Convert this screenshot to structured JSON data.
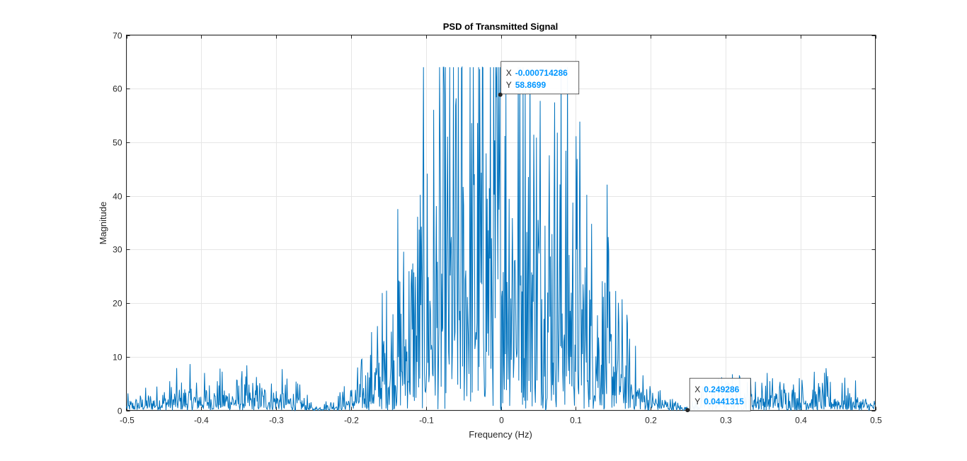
{
  "chart_data": {
    "type": "line",
    "title": "PSD of Transmitted Signal",
    "xlabel": "Frequency (Hz)",
    "ylabel": "Magnitude",
    "xlim": [
      -0.5,
      0.5
    ],
    "ylim": [
      0,
      70
    ],
    "xticks": [
      -0.5,
      -0.4,
      -0.3,
      -0.2,
      -0.1,
      0,
      0.1,
      0.2,
      0.3,
      0.4,
      0.5
    ],
    "xtick_labels": [
      "-0.5",
      "-0.4",
      "-0.3",
      "-0.2",
      "-0.1",
      "0",
      "0.1",
      "0.2",
      "0.3",
      "0.4",
      "0.5"
    ],
    "yticks": [
      0,
      10,
      20,
      30,
      40,
      50,
      60,
      70
    ],
    "ytick_labels": [
      "0",
      "10",
      "20",
      "30",
      "40",
      "50",
      "60",
      "70"
    ],
    "grid": true,
    "series_color": "#0072BD",
    "envelope": {
      "x": [
        -0.5,
        -0.45,
        -0.4,
        -0.35,
        -0.3,
        -0.27,
        -0.25,
        -0.22,
        -0.2,
        -0.18,
        -0.15,
        -0.12,
        -0.1,
        -0.05,
        0,
        0.05,
        0.1,
        0.12,
        0.15,
        0.18,
        0.2,
        0.22,
        0.25,
        0.27,
        0.3,
        0.35,
        0.4,
        0.45,
        0.5
      ],
      "y": [
        1,
        2.5,
        3,
        3,
        3,
        2,
        0.3,
        1.5,
        2.5,
        5,
        12,
        20,
        27,
        38,
        45,
        38,
        27,
        20,
        12,
        5,
        2.5,
        1.5,
        0.3,
        2,
        3,
        3,
        3,
        2.5,
        1
      ]
    },
    "annotations": [
      {
        "x_label": "X",
        "x_value": "-0.000714286",
        "y_label": "Y",
        "y_value": "58.8699",
        "x": -0.000714286,
        "y": 58.8699
      },
      {
        "x_label": "X",
        "x_value": "0.249286",
        "y_label": "Y",
        "y_value": "0.0441315",
        "x": 0.249286,
        "y": 0.0441315
      }
    ],
    "annotation_value_color": "#0096FF"
  }
}
